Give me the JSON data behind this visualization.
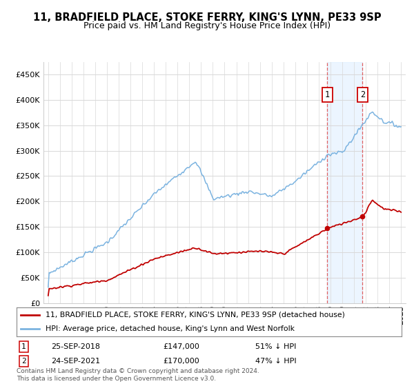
{
  "title": "11, BRADFIELD PLACE, STOKE FERRY, KING'S LYNN, PE33 9SP",
  "subtitle": "Price paid vs. HM Land Registry's House Price Index (HPI)",
  "legend_line1": "11, BRADFIELD PLACE, STOKE FERRY, KING'S LYNN, PE33 9SP (detached house)",
  "legend_line2": "HPI: Average price, detached house, King's Lynn and West Norfolk",
  "footnote1": "Contains HM Land Registry data © Crown copyright and database right 2024.",
  "footnote2": "This data is licensed under the Open Government Licence v3.0.",
  "hpi_color": "#7bb3e0",
  "price_color": "#c00000",
  "vline_color": "#e06060",
  "shade_color": "#ddeeff",
  "point1": {
    "date": "25-SEP-2018",
    "price": 147000,
    "price_str": "£147,000",
    "label": "1",
    "pct": "51% ↓ HPI",
    "year": 2018.73
  },
  "point2": {
    "date": "24-SEP-2021",
    "price": 170000,
    "price_str": "£170,000",
    "label": "2",
    "pct": "47% ↓ HPI",
    "year": 2021.73
  },
  "ylim": [
    0,
    475000
  ],
  "yticks": [
    0,
    50000,
    100000,
    150000,
    200000,
    250000,
    300000,
    350000,
    400000,
    450000
  ],
  "ytick_labels": [
    "£0",
    "£50K",
    "£100K",
    "£150K",
    "£200K",
    "£250K",
    "£300K",
    "£350K",
    "£400K",
    "£450K"
  ],
  "background_color": "#ffffff",
  "grid_color": "#d8d8d8",
  "title_fontsize": 10.5,
  "subtitle_fontsize": 9,
  "axis_fontsize": 8
}
